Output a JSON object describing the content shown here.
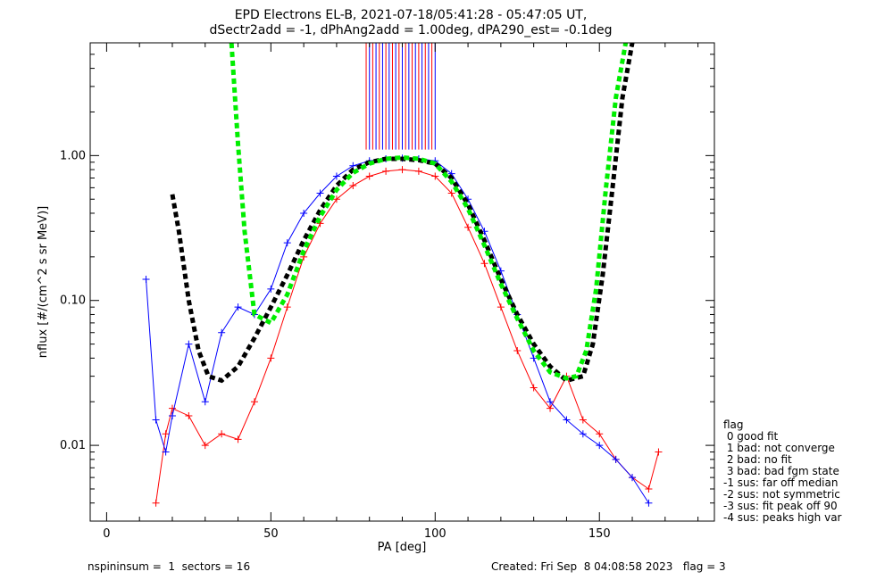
{
  "chart_data": {
    "type": "line",
    "title": "EPD Electrons EL-B, 2021-07-18/05:41:28 - 05:47:05 UT,",
    "subtitle": "dSectr2add = -1, dPhAng2add = 1.00deg, dPA290_est=  -0.1deg",
    "xlabel": "PA [deg]",
    "ylabel": "nflux [#/(cm^2 s sr MeV)]",
    "xlim": [
      -5,
      185
    ],
    "ylim": [
      0.003,
      6.0
    ],
    "yscale": "log",
    "x_ticks": [
      0,
      50,
      100,
      150
    ],
    "x_tick_labels": [
      "0",
      "50",
      "100",
      "150"
    ],
    "y_ticks": [
      0.01,
      0.1,
      1.0
    ],
    "y_tick_labels": [
      "0.01",
      "0.10",
      "1.00"
    ],
    "grid": false,
    "series": [
      {
        "kind": "model",
        "color": "#000000",
        "x": [
          20,
          22,
          25,
          28,
          31,
          35,
          40,
          45,
          50,
          55,
          60,
          65,
          70,
          75,
          80,
          85,
          90,
          95,
          100,
          105,
          110,
          115,
          120,
          125,
          130,
          135,
          140,
          145,
          148,
          151,
          154,
          157,
          160
        ],
        "y": [
          0.54,
          0.3,
          0.1,
          0.045,
          0.03,
          0.028,
          0.035,
          0.055,
          0.09,
          0.15,
          0.26,
          0.42,
          0.62,
          0.8,
          0.9,
          0.95,
          0.95,
          0.93,
          0.88,
          0.7,
          0.46,
          0.26,
          0.14,
          0.08,
          0.05,
          0.035,
          0.028,
          0.03,
          0.05,
          0.15,
          0.6,
          2.5,
          6.0
        ]
      },
      {
        "kind": "model",
        "color": "#00ee00",
        "x": [
          38,
          40,
          42,
          45,
          50,
          55,
          60,
          65,
          70,
          75,
          80,
          85,
          90,
          95,
          100,
          105,
          110,
          115,
          120,
          125,
          130,
          135,
          140,
          143,
          146,
          149,
          152,
          155,
          158
        ],
        "y": [
          6.0,
          1.2,
          0.3,
          0.08,
          0.07,
          0.11,
          0.22,
          0.38,
          0.58,
          0.76,
          0.88,
          0.95,
          0.97,
          0.95,
          0.88,
          0.66,
          0.43,
          0.24,
          0.13,
          0.075,
          0.045,
          0.032,
          0.029,
          0.03,
          0.045,
          0.12,
          0.6,
          2.5,
          6.0
        ]
      }
    ],
    "scatter_groups": [
      {
        "color": "#ff0000",
        "name": "",
        "x": [
          15,
          18,
          20,
          25,
          30,
          35,
          40,
          45,
          50,
          55,
          60,
          65,
          70,
          75,
          80,
          85,
          90,
          95,
          100,
          105,
          110,
          115,
          120,
          125,
          130,
          135,
          140,
          145,
          150,
          155,
          160,
          165,
          168
        ],
        "y": [
          0.004,
          0.012,
          0.018,
          0.016,
          0.01,
          0.012,
          0.011,
          0.02,
          0.04,
          0.09,
          0.2,
          0.34,
          0.5,
          0.62,
          0.72,
          0.78,
          0.8,
          0.78,
          0.72,
          0.55,
          0.32,
          0.18,
          0.09,
          0.045,
          0.025,
          0.018,
          0.03,
          0.015,
          0.012,
          0.008,
          0.006,
          0.005,
          0.009
        ]
      },
      {
        "color": "#0000ff",
        "name": "",
        "x": [
          12,
          15,
          18,
          20,
          25,
          30,
          35,
          40,
          45,
          50,
          55,
          60,
          65,
          70,
          75,
          80,
          85,
          90,
          95,
          100,
          105,
          110,
          115,
          120,
          125,
          130,
          135,
          140,
          145,
          150,
          155,
          160,
          165
        ],
        "y": [
          0.14,
          0.015,
          0.009,
          0.016,
          0.05,
          0.02,
          0.06,
          0.09,
          0.08,
          0.12,
          0.25,
          0.4,
          0.55,
          0.72,
          0.85,
          0.92,
          0.95,
          0.96,
          0.95,
          0.92,
          0.75,
          0.5,
          0.3,
          0.16,
          0.08,
          0.04,
          0.02,
          0.015,
          0.012,
          0.01,
          0.008,
          0.006,
          0.004
        ]
      }
    ],
    "vertical_markers": {
      "red_x": [
        79,
        81,
        83,
        85,
        87,
        89,
        91,
        93,
        95,
        97,
        99
      ],
      "blue_x": [
        80,
        82,
        84,
        86,
        88,
        90,
        92,
        94,
        96,
        98,
        100
      ],
      "y_from": 1.1,
      "y_to": 6.0
    },
    "legend": {
      "title": "flag",
      "items": [
        " 0 good fit",
        " 1 bad: not converge",
        " 2 bad: no fit",
        " 3 bad: bad fgm state",
        "-1 sus: far off median",
        "-2 sus: not symmetric",
        "-3 sus: fit peak off 90",
        "-4 sus: peaks high var"
      ]
    }
  },
  "footer": {
    "left": "nspininsum =  1  sectors = 16",
    "right": "Created: Fri Sep  8 04:08:58 2023   flag = 3"
  }
}
